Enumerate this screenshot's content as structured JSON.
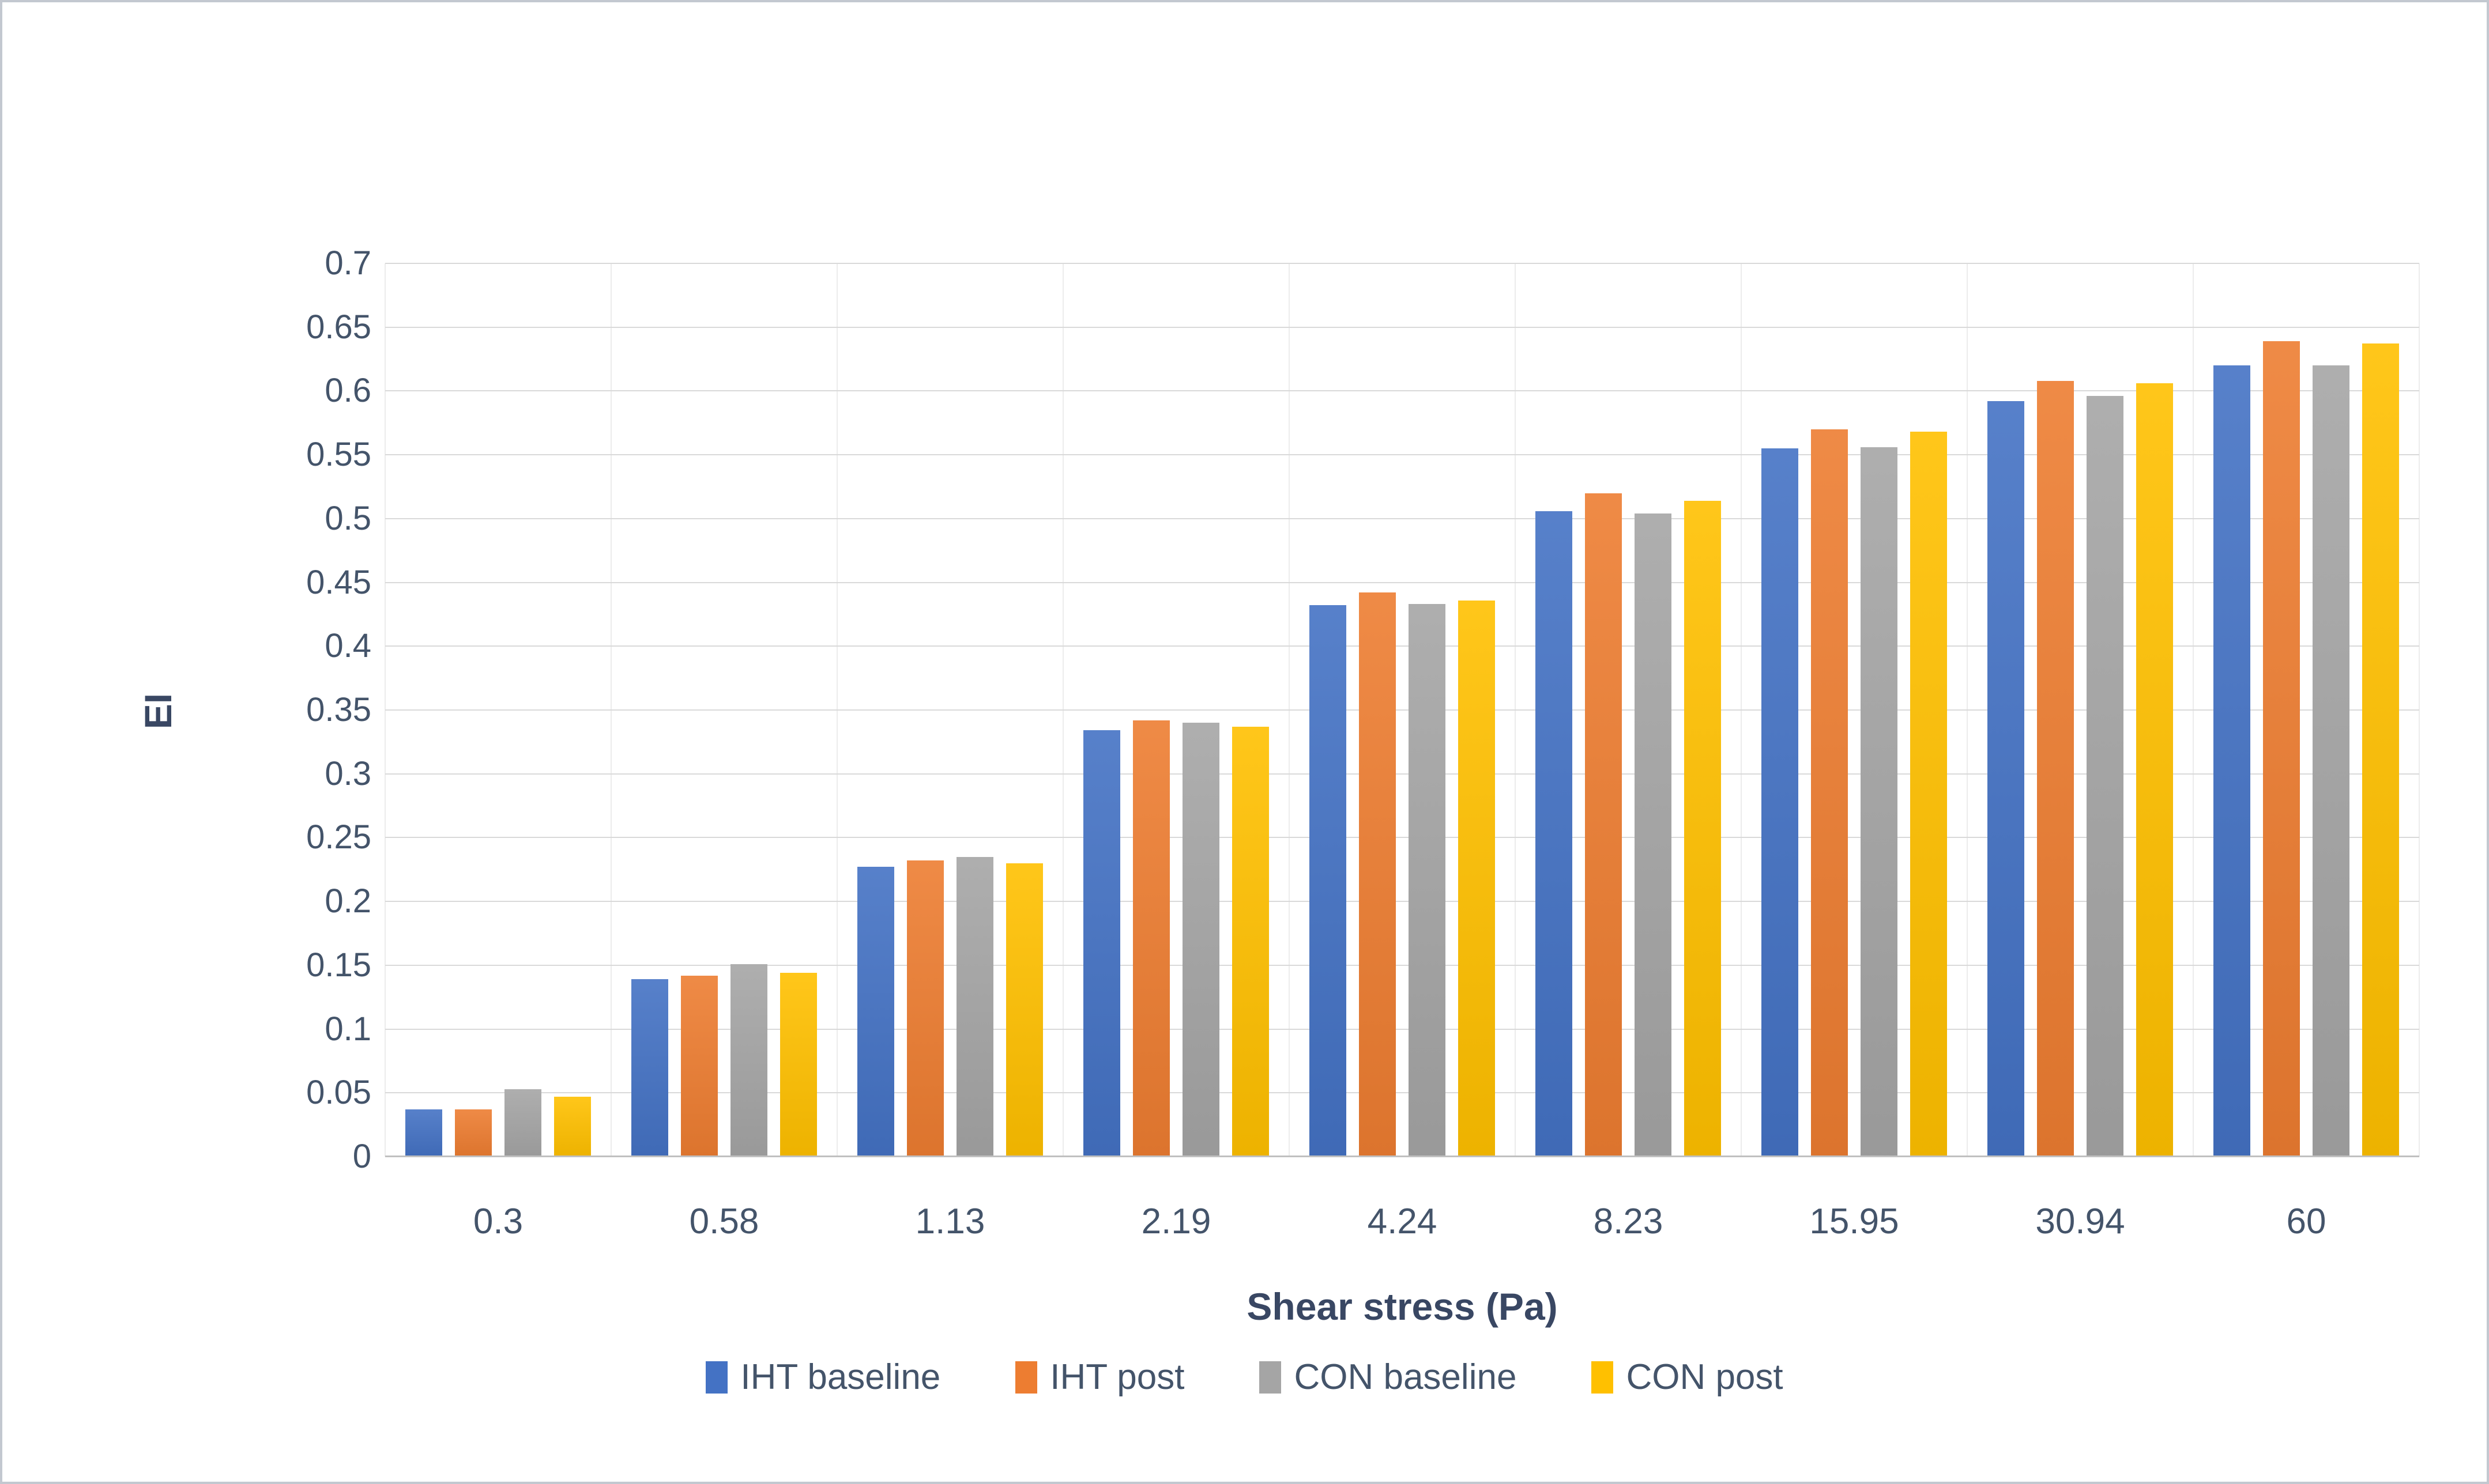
{
  "chart_data": {
    "type": "bar",
    "title": "",
    "xlabel": "Shear stress (Pa)",
    "ylabel": "EI",
    "categories": [
      "0.3",
      "0.58",
      "1.13",
      "2.19",
      "4.24",
      "8.23",
      "15.95",
      "30.94",
      "60"
    ],
    "series": [
      {
        "name": "IHT baseline",
        "color": "#4472C4",
        "values": [
          0.037,
          0.139,
          0.227,
          0.334,
          0.432,
          0.506,
          0.555,
          0.592,
          0.62
        ]
      },
      {
        "name": "IHT post",
        "color": "#ED7D31",
        "values": [
          0.037,
          0.142,
          0.232,
          0.342,
          0.442,
          0.52,
          0.57,
          0.608,
          0.639
        ]
      },
      {
        "name": "CON baseline",
        "color": "#A5A5A5",
        "values": [
          0.053,
          0.151,
          0.235,
          0.34,
          0.433,
          0.504,
          0.556,
          0.596,
          0.62
        ]
      },
      {
        "name": "CON post",
        "color": "#FFC000",
        "values": [
          0.047,
          0.144,
          0.23,
          0.337,
          0.436,
          0.514,
          0.568,
          0.606,
          0.637
        ]
      }
    ],
    "ylim": [
      0,
      0.7
    ],
    "ytick_step": 0.05,
    "ytick_labels": [
      "0",
      "0.05",
      "0.1",
      "0.15",
      "0.2",
      "0.25",
      "0.3",
      "0.35",
      "0.4",
      "0.45",
      "0.5",
      "0.55",
      "0.6",
      "0.65",
      "0.7"
    ],
    "grid": "horizontal-light",
    "legend_position": "bottom-center",
    "colors": {
      "gridline": "#D9D9D9",
      "axis_line": "#C0C0C0",
      "category_boundary": "#ECECEC",
      "text": "#44546A",
      "border": "#C3C8D0",
      "background": "#FFFFFF"
    }
  }
}
